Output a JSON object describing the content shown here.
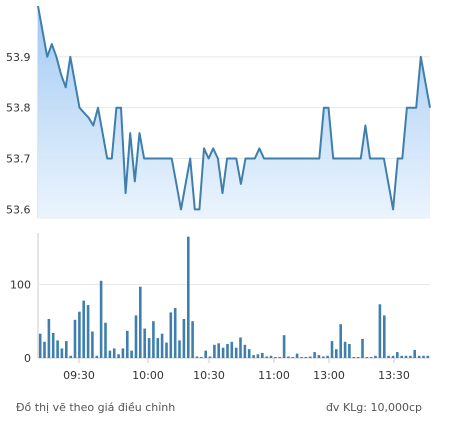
{
  "chart_data": [
    {
      "type": "area",
      "name": "price",
      "ylim": [
        53.583,
        54.0
      ],
      "yticks": [
        53.6,
        53.7,
        53.8,
        53.9
      ],
      "ytick_labels": [
        "53.6",
        "53.7",
        "53.8",
        "53.9"
      ],
      "grid": true,
      "colors": {
        "line": "#3f7fae",
        "fill_top": "#9cc6f2",
        "fill_bottom": "#e9f3fd",
        "grid": "#e8e8e8"
      },
      "points": [
        [
          0,
          54.0
        ],
        [
          1,
          53.95
        ],
        [
          2,
          53.9
        ],
        [
          3,
          53.925
        ],
        [
          4,
          53.9
        ],
        [
          5,
          53.865
        ],
        [
          6,
          53.84
        ],
        [
          7,
          53.9
        ],
        [
          8,
          53.85
        ],
        [
          9,
          53.8
        ],
        [
          10,
          53.79
        ],
        [
          11,
          53.78
        ],
        [
          12,
          53.765
        ],
        [
          13,
          53.8
        ],
        [
          14,
          53.75
        ],
        [
          15,
          53.7
        ],
        [
          16,
          53.7
        ],
        [
          17,
          53.8
        ],
        [
          18,
          53.8
        ],
        [
          19,
          53.632
        ],
        [
          20,
          53.75
        ],
        [
          21,
          53.655
        ],
        [
          22,
          53.75
        ],
        [
          23,
          53.7
        ],
        [
          24,
          53.7
        ],
        [
          25,
          53.7
        ],
        [
          26,
          53.7
        ],
        [
          27,
          53.7
        ],
        [
          28,
          53.7
        ],
        [
          29,
          53.7
        ],
        [
          30,
          53.65
        ],
        [
          31,
          53.6
        ],
        [
          32,
          53.65
        ],
        [
          33,
          53.7
        ],
        [
          34,
          53.6
        ],
        [
          35,
          53.6
        ],
        [
          36,
          53.72
        ],
        [
          37,
          53.7
        ],
        [
          38,
          53.72
        ],
        [
          39,
          53.7
        ],
        [
          40,
          53.632
        ],
        [
          41,
          53.7
        ],
        [
          42,
          53.7
        ],
        [
          43,
          53.7
        ],
        [
          44,
          53.65
        ],
        [
          45,
          53.7
        ],
        [
          46,
          53.7
        ],
        [
          47,
          53.7
        ],
        [
          48,
          53.72
        ],
        [
          49,
          53.7
        ],
        [
          50,
          53.7
        ],
        [
          51,
          53.7
        ],
        [
          52,
          53.7
        ],
        [
          53,
          53.7
        ],
        [
          54,
          53.7
        ],
        [
          55,
          53.7
        ],
        [
          56,
          53.7
        ],
        [
          57,
          53.7
        ],
        [
          58,
          53.7
        ],
        [
          59,
          53.7
        ],
        [
          60,
          53.7
        ],
        [
          61,
          53.7
        ],
        [
          62,
          53.8
        ],
        [
          63,
          53.8
        ],
        [
          64,
          53.7
        ],
        [
          65,
          53.7
        ],
        [
          66,
          53.7
        ],
        [
          67,
          53.7
        ],
        [
          68,
          53.7
        ],
        [
          69,
          53.7
        ],
        [
          70,
          53.7
        ],
        [
          71,
          53.765
        ],
        [
          72,
          53.7
        ],
        [
          73,
          53.7
        ],
        [
          74,
          53.7
        ],
        [
          75,
          53.7
        ],
        [
          76,
          53.65
        ],
        [
          77,
          53.6
        ],
        [
          78,
          53.7
        ],
        [
          79,
          53.7
        ],
        [
          80,
          53.8
        ],
        [
          81,
          53.8
        ],
        [
          82,
          53.8
        ],
        [
          83,
          53.9
        ],
        [
          84,
          53.85
        ],
        [
          85,
          53.8
        ]
      ]
    },
    {
      "type": "bar",
      "name": "volume",
      "ylim": [
        0,
        170
      ],
      "yticks": [
        0,
        100
      ],
      "ytick_labels": [
        "0",
        "100"
      ],
      "grid": true,
      "colors": {
        "bar": "#3f7fae",
        "grid": "#e8e8e8"
      },
      "values": [
        33,
        22,
        53,
        34,
        24,
        13,
        23,
        3,
        52,
        63,
        78,
        72,
        36,
        3,
        105,
        48,
        10,
        13,
        5,
        13,
        37,
        10,
        58,
        97,
        40,
        27,
        50,
        27,
        33,
        21,
        62,
        68,
        24,
        53,
        165,
        50,
        2,
        1,
        10,
        2,
        18,
        20,
        14,
        19,
        22,
        14,
        28,
        18,
        12,
        4,
        5,
        7,
        2,
        3,
        0,
        0,
        31,
        2,
        1,
        6,
        0,
        1,
        2,
        8,
        4,
        2,
        3,
        23,
        12,
        46,
        22,
        19,
        1,
        1,
        26,
        0,
        0,
        3,
        73,
        58,
        3,
        3,
        8,
        3,
        3,
        3,
        11,
        3,
        3,
        3
      ],
      "x_tick_labels": [
        "09:30",
        "10:00",
        "10:30",
        "11:00",
        "13:00",
        "13:30"
      ]
    }
  ],
  "footer": {
    "note": "Đồ thị vẽ theo giá điều chỉnh",
    "unit": "đv KLg: 10,000cp"
  }
}
